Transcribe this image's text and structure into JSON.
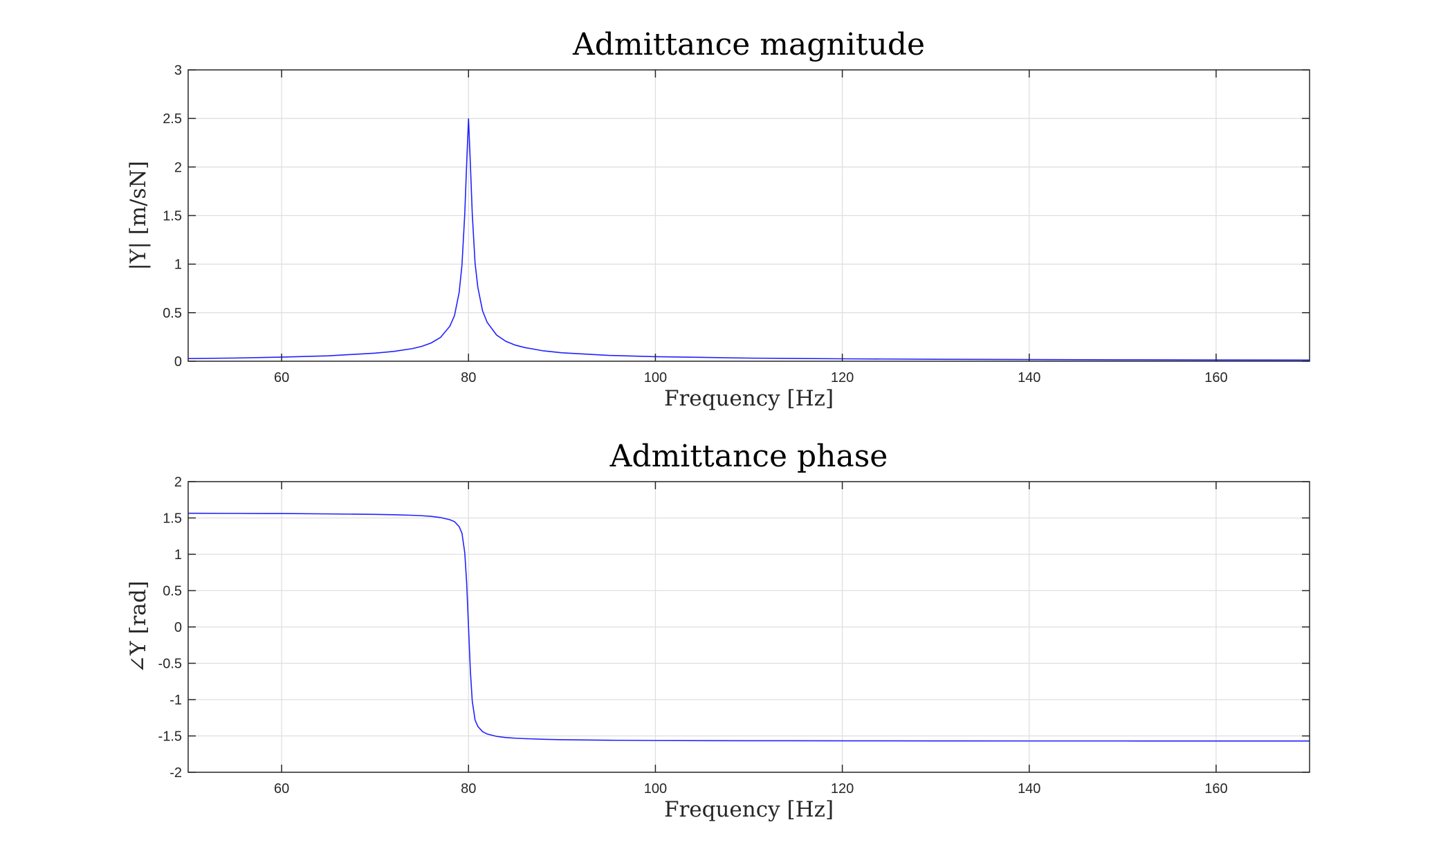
{
  "chart_data": [
    {
      "type": "line",
      "title": "Admittance magnitude",
      "xlabel": "Frequency [Hz]",
      "ylabel": "|Y| [m/sN]",
      "xlim": [
        50,
        170
      ],
      "ylim": [
        0,
        3
      ],
      "xticks": [
        60,
        80,
        100,
        120,
        140,
        160
      ],
      "yticks": [
        0,
        0.5,
        1,
        1.5,
        2,
        2.5,
        3
      ],
      "xtick_labels": [
        "60",
        "80",
        "100",
        "120",
        "140",
        "160"
      ],
      "ytick_labels": [
        "0",
        "0.5",
        "1",
        "1.5",
        "2",
        "2.5",
        "3"
      ],
      "grid": true,
      "series": [
        {
          "color": "#2020ff",
          "x": [
            50,
            55,
            60,
            65,
            70,
            72,
            74,
            75,
            76,
            77,
            78,
            78.5,
            79,
            79.3,
            79.6,
            79.8,
            80,
            80.2,
            80.4,
            80.7,
            81,
            81.5,
            82,
            83,
            84,
            85,
            86,
            88,
            90,
            95,
            100,
            110,
            120,
            130,
            140,
            150,
            160,
            170
          ],
          "values": [
            0.027,
            0.033,
            0.042,
            0.056,
            0.083,
            0.101,
            0.13,
            0.153,
            0.188,
            0.245,
            0.36,
            0.47,
            0.71,
            0.99,
            1.52,
            2.03,
            2.5,
            2.03,
            1.52,
            1.01,
            0.76,
            0.52,
            0.4,
            0.27,
            0.205,
            0.166,
            0.141,
            0.107,
            0.087,
            0.06,
            0.047,
            0.032,
            0.025,
            0.02,
            0.017,
            0.015,
            0.013,
            0.012
          ]
        }
      ]
    },
    {
      "type": "line",
      "title": "Admittance phase",
      "xlabel": "Frequency [Hz]",
      "ylabel": "∠Y [rad]",
      "xlim": [
        50,
        170
      ],
      "ylim": [
        -2,
        2
      ],
      "xticks": [
        60,
        80,
        100,
        120,
        140,
        160
      ],
      "yticks": [
        -2,
        -1.5,
        -1,
        -0.5,
        0,
        0.5,
        1,
        1.5,
        2
      ],
      "xtick_labels": [
        "60",
        "80",
        "100",
        "120",
        "140",
        "160"
      ],
      "ytick_labels": [
        "-2",
        "-1.5",
        "-1",
        "-0.5",
        "0",
        "0.5",
        "1",
        "1.5",
        "2"
      ],
      "grid": true,
      "series": [
        {
          "color": "#2020ff",
          "x": [
            50,
            55,
            60,
            65,
            70,
            72,
            74,
            75,
            76,
            77,
            78,
            78.5,
            79,
            79.3,
            79.6,
            79.8,
            80,
            80.2,
            80.4,
            80.7,
            81,
            81.5,
            82,
            83,
            84,
            85,
            86,
            88,
            90,
            95,
            100,
            110,
            120,
            130,
            140,
            150,
            160,
            170
          ],
          "values": [
            1.565,
            1.563,
            1.561,
            1.556,
            1.549,
            1.545,
            1.537,
            1.531,
            1.522,
            1.506,
            1.476,
            1.45,
            1.38,
            1.29,
            1.02,
            0.61,
            0,
            -0.61,
            -1.02,
            -1.28,
            -1.37,
            -1.44,
            -1.474,
            -1.506,
            -1.522,
            -1.531,
            -1.537,
            -1.546,
            -1.552,
            -1.559,
            -1.563,
            -1.566,
            -1.567,
            -1.568,
            -1.569,
            -1.569,
            -1.57,
            -1.57
          ]
        }
      ]
    }
  ]
}
